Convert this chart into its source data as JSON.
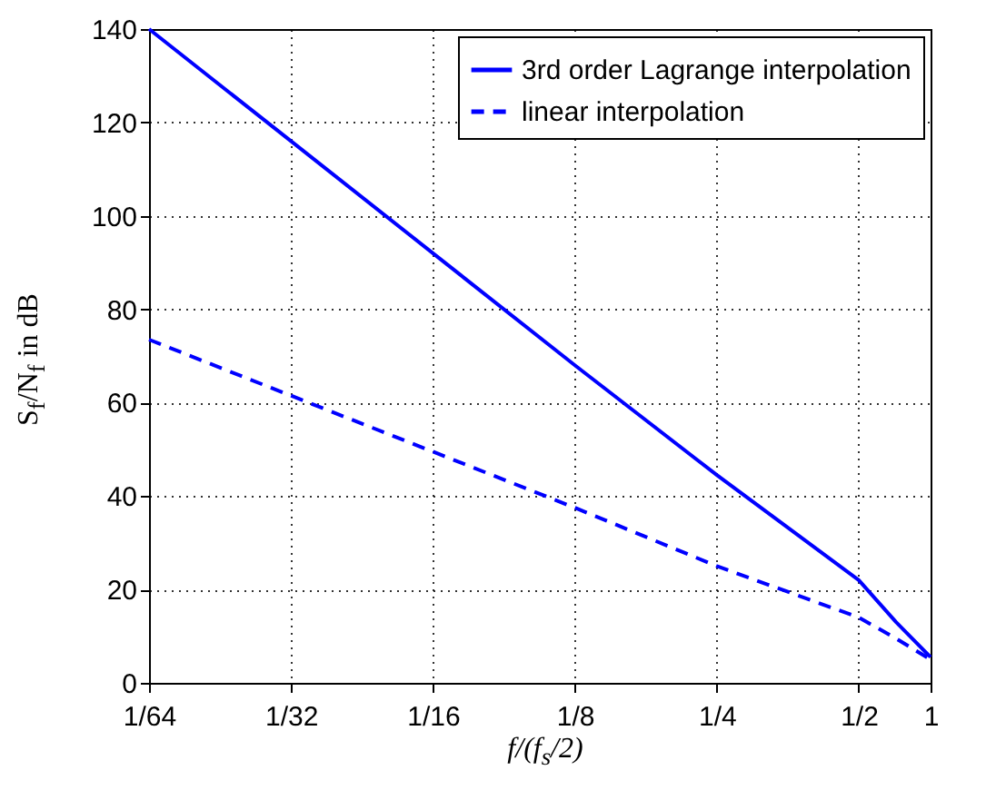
{
  "chart_data": {
    "type": "line",
    "xlabel": "f/(f$_{s}$/2)",
    "ylabel": "S$_{f}$/N$_{f}$ in dB",
    "x": [
      0.015625,
      0.03125,
      0.0625,
      0.125,
      0.25,
      0.5,
      0.6,
      0.71
    ],
    "series": [
      {
        "name": "3rd order Lagrange interpolation",
        "color": "#0000ff",
        "line_style": "solid",
        "values": [
          140,
          116,
          92,
          68,
          44.5,
          22,
          13,
          5.5
        ]
      },
      {
        "name": "linear interpolation",
        "color": "#0000ff",
        "line_style": "dashed",
        "values": [
          73.5,
          61.5,
          49.5,
          37.5,
          25,
          14,
          9.5,
          5
        ]
      }
    ],
    "log": "x",
    "xlim": [
      0.015625,
      0.71
    ],
    "ylim": [
      0,
      140
    ],
    "xticks": [
      {
        "value": 0.015625,
        "label": "1/64"
      },
      {
        "value": 0.03125,
        "label": "1/32"
      },
      {
        "value": 0.0625,
        "label": "1/16"
      },
      {
        "value": 0.125,
        "label": "1/8"
      },
      {
        "value": 0.25,
        "label": "1/4"
      },
      {
        "value": 0.5,
        "label": "1/2"
      },
      {
        "value": 0.71,
        "label": "1"
      }
    ],
    "yticks": [
      0,
      20,
      40,
      60,
      80,
      100,
      120,
      140
    ],
    "grid": true,
    "legend": "top right",
    "marker": "none"
  }
}
